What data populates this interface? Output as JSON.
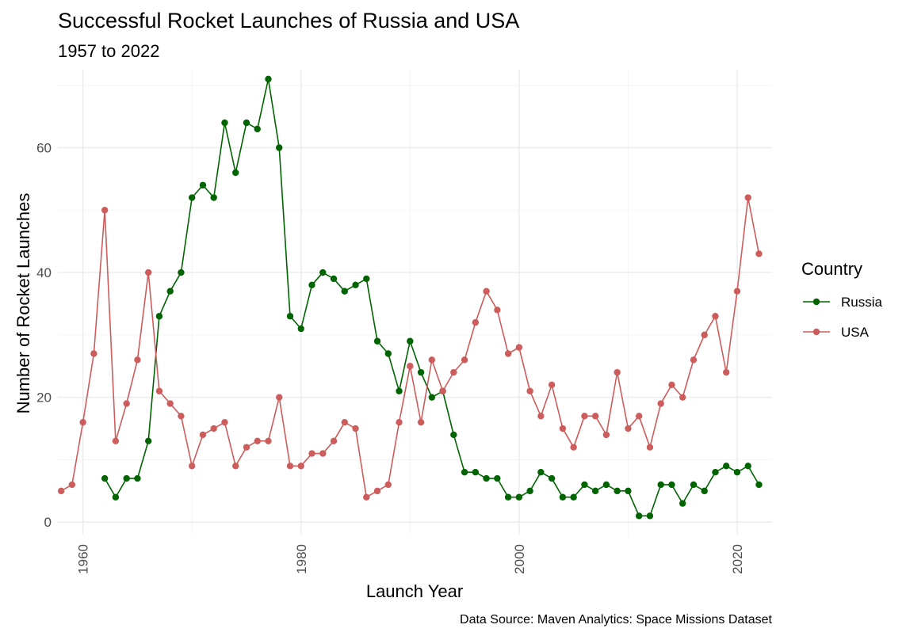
{
  "chart_data": {
    "type": "line",
    "title": "Successful Rocket Launches of Russia and USA",
    "subtitle": "1957 to 2022",
    "xlabel": "Launch Year",
    "ylabel": "Number of Rocket Launches",
    "caption": "Data Source: Maven Analytics: Space Missions Dataset",
    "xlim": [
      1957.7,
      2023.2
    ],
    "ylim": [
      -2,
      72.5
    ],
    "x_ticks": [
      1960,
      1980,
      2000,
      2020
    ],
    "x_tick_labels": [
      "1960",
      "1980",
      "2000",
      "2020"
    ],
    "y_ticks": [
      0,
      20,
      40,
      60
    ],
    "y_tick_labels": [
      "0",
      "20",
      "40",
      "60"
    ],
    "grid": true,
    "legend": {
      "title": "Country",
      "position": "right"
    },
    "series": [
      {
        "name": "Russia",
        "color": "#006400",
        "points": [
          [
            1962,
            7
          ],
          [
            1963,
            4
          ],
          [
            1964,
            7
          ],
          [
            1965,
            7
          ],
          [
            1966,
            13
          ],
          [
            1967,
            33
          ],
          [
            1968,
            37
          ],
          [
            1969,
            40
          ],
          [
            1970,
            52
          ],
          [
            1971,
            54
          ],
          [
            1972,
            52
          ],
          [
            1973,
            64
          ],
          [
            1974,
            56
          ],
          [
            1975,
            64
          ],
          [
            1976,
            63
          ],
          [
            1977,
            71
          ],
          [
            1978,
            60
          ],
          [
            1979,
            33
          ],
          [
            1980,
            31
          ],
          [
            1981,
            38
          ],
          [
            1982,
            40
          ],
          [
            1983,
            39
          ],
          [
            1984,
            37
          ],
          [
            1985,
            38
          ],
          [
            1986,
            39
          ],
          [
            1987,
            29
          ],
          [
            1988,
            27
          ],
          [
            1989,
            21
          ],
          [
            1990,
            29
          ],
          [
            1991,
            24
          ],
          [
            1992,
            20
          ],
          [
            1993,
            21
          ],
          [
            1994,
            14
          ],
          [
            1995,
            8
          ],
          [
            1996,
            8
          ],
          [
            1997,
            7
          ],
          [
            1998,
            7
          ],
          [
            1999,
            4
          ],
          [
            2000,
            4
          ],
          [
            2001,
            5
          ],
          [
            2002,
            8
          ],
          [
            2003,
            7
          ],
          [
            2004,
            4
          ],
          [
            2005,
            4
          ],
          [
            2006,
            6
          ],
          [
            2007,
            5
          ],
          [
            2008,
            6
          ],
          [
            2009,
            5
          ],
          [
            2010,
            5
          ],
          [
            2011,
            1
          ],
          [
            2012,
            1
          ],
          [
            2013,
            6
          ],
          [
            2014,
            6
          ],
          [
            2015,
            3
          ],
          [
            2016,
            6
          ],
          [
            2017,
            5
          ],
          [
            2018,
            8
          ],
          [
            2019,
            9
          ],
          [
            2020,
            8
          ],
          [
            2021,
            9
          ],
          [
            2022,
            6
          ]
        ]
      },
      {
        "name": "USA",
        "color": "#cd5c5c",
        "points": [
          [
            1958,
            5
          ],
          [
            1959,
            6
          ],
          [
            1960,
            16
          ],
          [
            1961,
            27
          ],
          [
            1962,
            50
          ],
          [
            1963,
            13
          ],
          [
            1964,
            19
          ],
          [
            1965,
            26
          ],
          [
            1966,
            40
          ],
          [
            1967,
            21
          ],
          [
            1968,
            19
          ],
          [
            1969,
            17
          ],
          [
            1970,
            9
          ],
          [
            1971,
            14
          ],
          [
            1972,
            15
          ],
          [
            1973,
            16
          ],
          [
            1974,
            9
          ],
          [
            1975,
            12
          ],
          [
            1976,
            13
          ],
          [
            1977,
            13
          ],
          [
            1978,
            20
          ],
          [
            1979,
            9
          ],
          [
            1980,
            9
          ],
          [
            1981,
            11
          ],
          [
            1982,
            11
          ],
          [
            1983,
            13
          ],
          [
            1984,
            16
          ],
          [
            1985,
            15
          ],
          [
            1986,
            4
          ],
          [
            1987,
            5
          ],
          [
            1988,
            6
          ],
          [
            1989,
            16
          ],
          [
            1990,
            25
          ],
          [
            1991,
            16
          ],
          [
            1992,
            26
          ],
          [
            1993,
            21
          ],
          [
            1994,
            24
          ],
          [
            1995,
            26
          ],
          [
            1996,
            32
          ],
          [
            1997,
            37
          ],
          [
            1998,
            34
          ],
          [
            1999,
            27
          ],
          [
            2000,
            28
          ],
          [
            2001,
            21
          ],
          [
            2002,
            17
          ],
          [
            2003,
            22
          ],
          [
            2004,
            15
          ],
          [
            2005,
            12
          ],
          [
            2006,
            17
          ],
          [
            2007,
            17
          ],
          [
            2008,
            14
          ],
          [
            2009,
            24
          ],
          [
            2010,
            15
          ],
          [
            2011,
            17
          ],
          [
            2012,
            12
          ],
          [
            2013,
            19
          ],
          [
            2014,
            22
          ],
          [
            2015,
            20
          ],
          [
            2016,
            26
          ],
          [
            2017,
            30
          ],
          [
            2018,
            33
          ],
          [
            2019,
            24
          ],
          [
            2020,
            37
          ],
          [
            2021,
            52
          ],
          [
            2022,
            43
          ]
        ]
      }
    ]
  }
}
